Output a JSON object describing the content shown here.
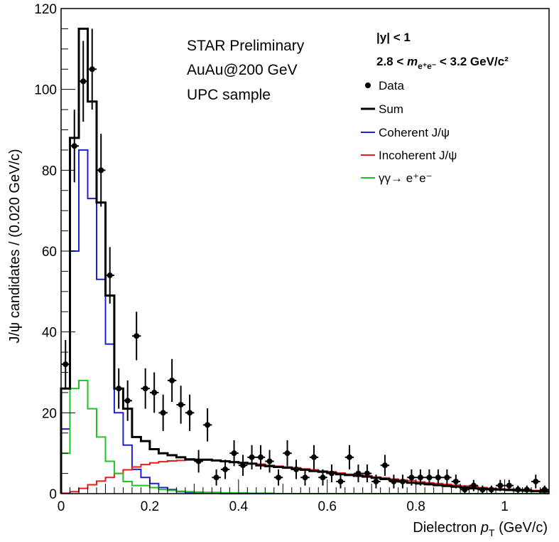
{
  "chart_data": {
    "type": "histogram",
    "xlim": [
      0,
      1.1
    ],
    "ylim": [
      0,
      120
    ],
    "xlabel": "Dielectron p_T (GeV/c)",
    "xlabel_parts": {
      "main": "Dielectron ",
      "var": "p",
      "sub": "T",
      "unit": " (GeV/c)"
    },
    "ylabel": "J/ψ candidates / (0.020 GeV/c)",
    "x_ticks": [
      0,
      0.2,
      0.4,
      0.6,
      0.8,
      1
    ],
    "x_tick_labels": [
      "0",
      "0.2",
      "0.4",
      "0.6",
      "0.8",
      "1"
    ],
    "y_ticks": [
      0,
      20,
      40,
      60,
      80,
      100,
      120
    ],
    "y_tick_labels": [
      "0",
      "20",
      "40",
      "60",
      "80",
      "100",
      "120"
    ],
    "annotations": [
      "STAR Preliminary",
      "AuAu@200 GeV",
      "UPC sample"
    ],
    "selection": {
      "rapidity": "|y| < 1",
      "mass_prefix": "2.8 < ",
      "mass_var": "m",
      "mass_sub": "e⁺e⁻",
      "mass_suffix": " < 3.2 GeV/c²"
    },
    "legend_placement": "top-right",
    "legend": [
      {
        "label": "Data",
        "color": "#000000",
        "style": "marker"
      },
      {
        "label": "Sum",
        "color": "#000000",
        "style": "line"
      },
      {
        "label": "Coherent J/ψ",
        "color": "#1f1fd6",
        "style": "line"
      },
      {
        "label": "Incoherent J/ψ",
        "color": "#e81c1c",
        "style": "line"
      },
      {
        "label": "γγ→ e⁺e⁻",
        "color": "#22c222",
        "style": "line"
      }
    ],
    "bin_edges": [
      0,
      0.02,
      0.04,
      0.06,
      0.08,
      0.1,
      0.12,
      0.14,
      0.16,
      0.18,
      0.2,
      0.22,
      0.24,
      0.26,
      0.28,
      0.3,
      0.32,
      0.34,
      0.36,
      0.38,
      0.4,
      0.42,
      0.44,
      0.46,
      0.48,
      0.5,
      0.52,
      0.54,
      0.56,
      0.58,
      0.6,
      0.62,
      0.64,
      0.66,
      0.68,
      0.7,
      0.72,
      0.74,
      0.76,
      0.78,
      0.8,
      0.82,
      0.84,
      0.86,
      0.88,
      0.9,
      0.92,
      0.94,
      0.96,
      0.98,
      1.0,
      1.02,
      1.04,
      1.06,
      1.08,
      1.1
    ],
    "series": [
      {
        "name": "Sum",
        "color": "#000000",
        "width": 3,
        "values": [
          26,
          88,
          115,
          97,
          72,
          49,
          26,
          21,
          14,
          13,
          11,
          10,
          9.5,
          9,
          8.5,
          8.4,
          8.4,
          8.2,
          8,
          7.8,
          7.6,
          7.4,
          7,
          6.8,
          6.6,
          6.4,
          6.1,
          5.9,
          5.6,
          5.4,
          5.1,
          4.8,
          4.6,
          4.4,
          4.2,
          3.9,
          3.6,
          3.3,
          3,
          2.7,
          2.5,
          2.3,
          2.1,
          1.9,
          1.7,
          1.5,
          1.3,
          1.2,
          1.1,
          1,
          0.9,
          0.8,
          0.7,
          0.6,
          0.5
        ]
      },
      {
        "name": "Coherent J/ψ",
        "color": "#1f1fd6",
        "width": 2,
        "values": [
          16,
          60,
          85,
          73,
          53,
          37,
          20,
          12,
          6,
          4,
          2.5,
          1.5,
          1,
          0.5,
          0.3,
          0.2,
          0.1,
          0.1,
          0,
          0,
          0,
          0,
          0,
          0,
          0,
          0,
          0,
          0,
          0,
          0,
          0,
          0,
          0,
          0,
          0,
          0,
          0,
          0,
          0,
          0,
          0,
          0,
          0,
          0,
          0,
          0,
          0,
          0,
          0,
          0,
          0,
          0,
          0,
          0,
          0
        ]
      },
      {
        "name": "Incoherent J/ψ",
        "color": "#e81c1c",
        "width": 2,
        "values": [
          0.1,
          0.5,
          1.3,
          2.2,
          3.1,
          4,
          5,
          5.9,
          6.6,
          7.2,
          7.6,
          7.9,
          8.1,
          8.2,
          8.3,
          8.3,
          8.3,
          8.2,
          8.1,
          7.9,
          7.7,
          7.5,
          7.3,
          7,
          6.8,
          6.6,
          6.4,
          6.1,
          5.9,
          5.6,
          5.4,
          5.1,
          4.8,
          4.6,
          4.4,
          4.1,
          3.9,
          3.6,
          3.4,
          3.2,
          2.9,
          2.7,
          2.5,
          2.3,
          2.1,
          1.9,
          1.7,
          1.5,
          1.3,
          1.2,
          1.1,
          1,
          0.9,
          0.8,
          0.7
        ]
      },
      {
        "name": "γγ→ e⁺e⁻",
        "color": "#22c222",
        "width": 2,
        "values": [
          10,
          26,
          28,
          21,
          14,
          8,
          5,
          3,
          2,
          2,
          1.5,
          1,
          0.8,
          0.6,
          0.5,
          0.4,
          0.3,
          0.3,
          0.2,
          0.2,
          0.2,
          0.1,
          0.1,
          0.1,
          0,
          0,
          0,
          0,
          0,
          0,
          0,
          0,
          0,
          0,
          0,
          0,
          0,
          0,
          0,
          0,
          0,
          0,
          0,
          0,
          0,
          0,
          0,
          0,
          0,
          0,
          0,
          0,
          0,
          0,
          0
        ]
      }
    ],
    "data_points": {
      "name": "Data",
      "x": [
        0.01,
        0.03,
        0.05,
        0.07,
        0.09,
        0.11,
        0.13,
        0.15,
        0.17,
        0.19,
        0.21,
        0.23,
        0.25,
        0.27,
        0.29,
        0.31,
        0.33,
        0.35,
        0.37,
        0.39,
        0.41,
        0.43,
        0.45,
        0.47,
        0.49,
        0.51,
        0.53,
        0.55,
        0.57,
        0.59,
        0.61,
        0.63,
        0.65,
        0.67,
        0.69,
        0.71,
        0.73,
        0.75,
        0.77,
        0.79,
        0.81,
        0.83,
        0.85,
        0.87,
        0.89,
        0.91,
        0.93,
        0.95,
        0.97,
        0.99,
        1.01,
        1.03,
        1.05,
        1.07,
        1.09
      ],
      "y": [
        32,
        86,
        102,
        105,
        80,
        54,
        26,
        23,
        39,
        26,
        25,
        20,
        28,
        22,
        20,
        8,
        17,
        4,
        6,
        10,
        7,
        9,
        9,
        8,
        4,
        10,
        6,
        4,
        9,
        4,
        5,
        3,
        9,
        5,
        5,
        3,
        7,
        3,
        3,
        4,
        4,
        4,
        4,
        4,
        3,
        1,
        2,
        1,
        1,
        2,
        2,
        1,
        1,
        3,
        1
      ],
      "err": [
        6,
        9,
        10,
        10,
        9,
        7,
        5,
        5,
        6,
        5,
        5,
        4.5,
        5.3,
        4.7,
        4.5,
        2.8,
        4.1,
        2,
        2.4,
        3.2,
        2.6,
        3,
        3,
        2.8,
        2,
        3.2,
        2.4,
        2,
        3,
        2,
        2.2,
        1.7,
        3,
        2.2,
        2.2,
        1.7,
        2.6,
        1.7,
        1.7,
        2,
        2,
        2,
        2,
        2,
        1.7,
        1,
        1.4,
        1,
        1,
        1.4,
        1.4,
        1,
        1,
        1.7,
        1
      ]
    }
  }
}
